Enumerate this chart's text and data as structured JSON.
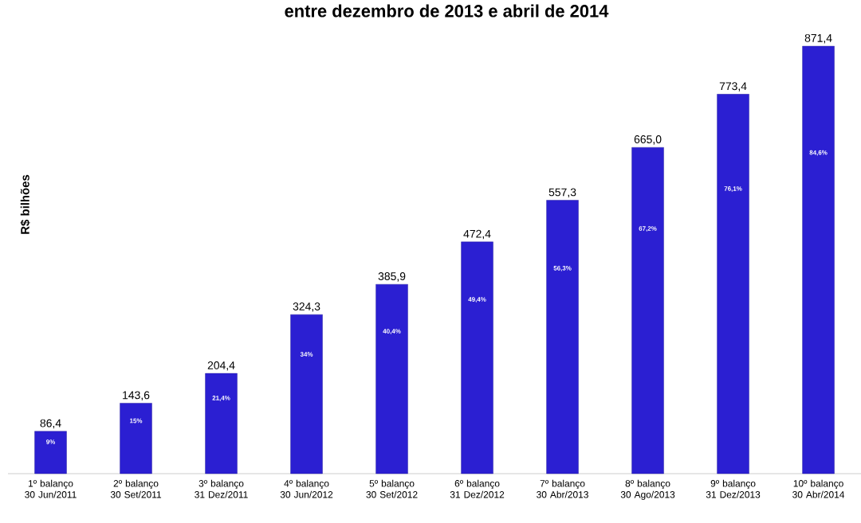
{
  "chart_data": {
    "type": "bar",
    "title": "entre dezembro de 2013 e abril de 2014",
    "ylabel": "R$ bilhões",
    "categories": [
      "1º  balanço 30 Jun/2011",
      "2º balanço 30 Set/2011",
      "3º balanço 31 Dez/2011",
      "4º balanço 30 Jun/2012",
      "5º balanço 30 Set/2012",
      "6º balanço 31 Dez/2012",
      "7º balanço 30 Abr/2013",
      "8º balanço 30 Ago/2013",
      "9º balanço 31 Dez/2013",
      "10º balanço 30 Abr/2014"
    ],
    "values": [
      86.4,
      143.6,
      204.4,
      324.3,
      385.9,
      472.4,
      557.3,
      665.0,
      773.4,
      871.4
    ],
    "value_labels": [
      "86,4",
      "143,6",
      "204,4",
      "324,3",
      "385,9",
      "472,4",
      "557,3",
      "665,0",
      "773,4",
      "871,4"
    ],
    "color": "#2b1fd2",
    "annotations": [
      "9%",
      "15%",
      "21,4%",
      "34%",
      "40,4%",
      "49,4%",
      "56,3%",
      "67,2%",
      "76,1%",
      "84,6%"
    ]
  }
}
